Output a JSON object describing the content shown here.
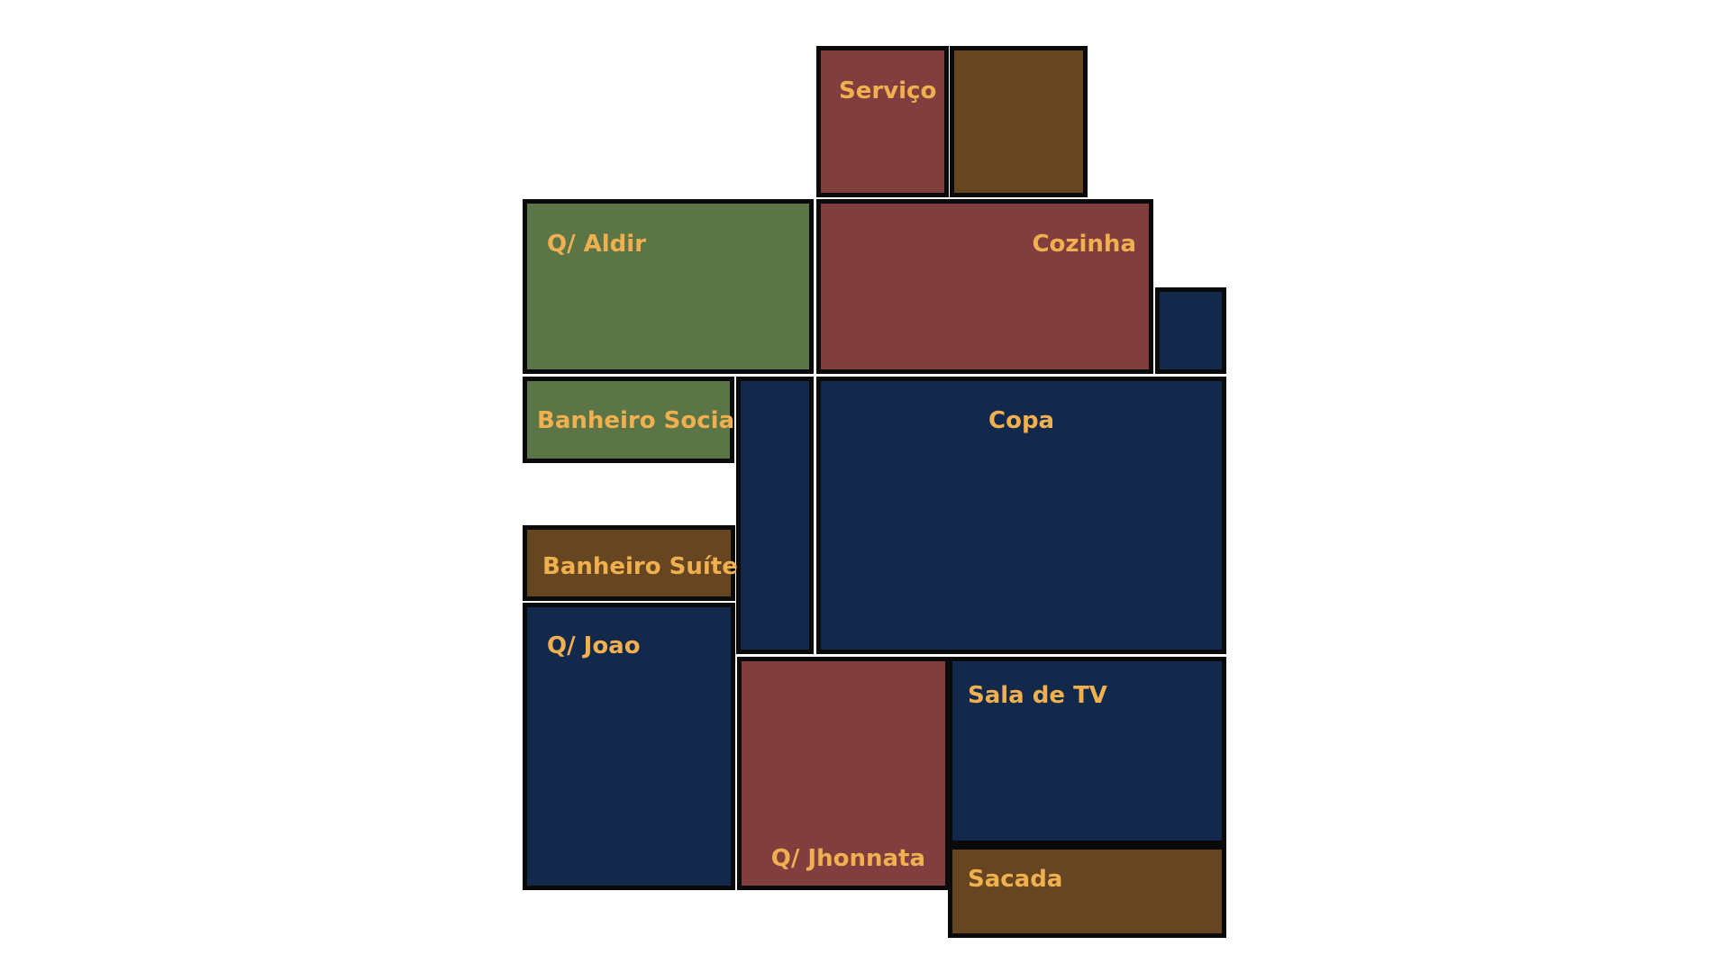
{
  "colors": {
    "navy": "#13294b",
    "maroon": "#813e3e",
    "brown": "#654620",
    "green": "#5b7546",
    "label": "#f0b050",
    "border": "#0a0a0a"
  },
  "rooms": {
    "servico": {
      "label": "Serviço",
      "color": "maroon"
    },
    "servico_annex": {
      "label": "",
      "color": "brown"
    },
    "q_aldir": {
      "label": "Q/ Aldir",
      "color": "green"
    },
    "cozinha": {
      "label": "Cozinha",
      "color": "maroon"
    },
    "small_navy": {
      "label": "",
      "color": "navy"
    },
    "banheiro_social": {
      "label": "Banheiro Social",
      "color": "green"
    },
    "corridor": {
      "label": "",
      "color": "navy"
    },
    "copa": {
      "label": "Copa",
      "color": "navy"
    },
    "banheiro_suite": {
      "label": "Banheiro Suíte",
      "color": "brown"
    },
    "q_joao": {
      "label": "Q/ Joao",
      "color": "navy"
    },
    "q_jhonnata": {
      "label": "Q/ Jhonnata",
      "color": "maroon"
    },
    "sala_tv": {
      "label": "Sala de TV",
      "color": "navy"
    },
    "sacada": {
      "label": "Sacada",
      "color": "brown"
    }
  }
}
